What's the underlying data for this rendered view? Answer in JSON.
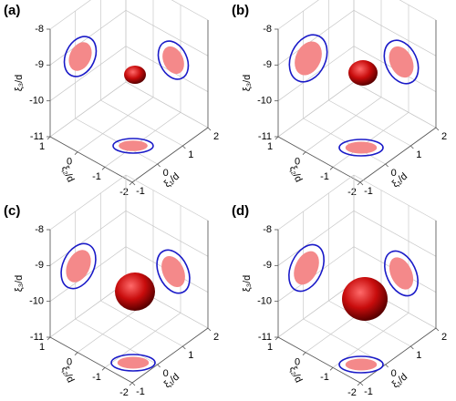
{
  "chart_data": [
    {
      "type": "surface3d",
      "title": "(a)",
      "xlabel": "ξ₁/d",
      "ylabel": "ξ₂/d",
      "zlabel": "ξ₃/d",
      "xlim": [
        -1,
        2
      ],
      "ylim": [
        -2,
        1
      ],
      "zlim": [
        -11,
        -8
      ],
      "xticks": [
        -1,
        0,
        1,
        2
      ],
      "yticks": [
        -2,
        -1,
        0,
        1
      ],
      "zticks": [
        -11,
        -10,
        -9,
        -8
      ]
    },
    {
      "type": "surface3d",
      "title": "(b)",
      "xlabel": "ξ₁/d",
      "ylabel": "ξ₂/d",
      "zlabel": "ξ₃/d",
      "xlim": [
        -1,
        2
      ],
      "ylim": [
        -2,
        1
      ],
      "zlim": [
        -11,
        -8
      ],
      "xticks": [
        -1,
        0,
        1,
        2
      ],
      "yticks": [
        -2,
        -1,
        0,
        1
      ],
      "zticks": [
        -11,
        -10,
        -9,
        -8
      ]
    },
    {
      "type": "surface3d",
      "title": "(c)",
      "xlabel": "ξ₁/d",
      "ylabel": "ξ₂/d",
      "zlabel": "ξ₃/d",
      "xlim": [
        -1,
        2
      ],
      "ylim": [
        -2,
        1
      ],
      "zlim": [
        -11,
        -8
      ],
      "xticks": [
        -1,
        0,
        1,
        2
      ],
      "yticks": [
        -2,
        -1,
        0,
        1
      ],
      "zticks": [
        -11,
        -10,
        -9,
        -8
      ]
    },
    {
      "type": "surface3d",
      "title": "(d)",
      "xlabel": "ξ₁/d",
      "ylabel": "ξ₂/d",
      "zlabel": "ξ₃/d",
      "xlim": [
        -1,
        2
      ],
      "ylim": [
        -2,
        1
      ],
      "zlim": [
        -11,
        -8
      ],
      "xticks": [
        -1,
        0,
        1,
        2
      ],
      "yticks": [
        -2,
        -1,
        0,
        1
      ],
      "zticks": [
        -11,
        -10,
        -9,
        -8
      ]
    }
  ]
}
